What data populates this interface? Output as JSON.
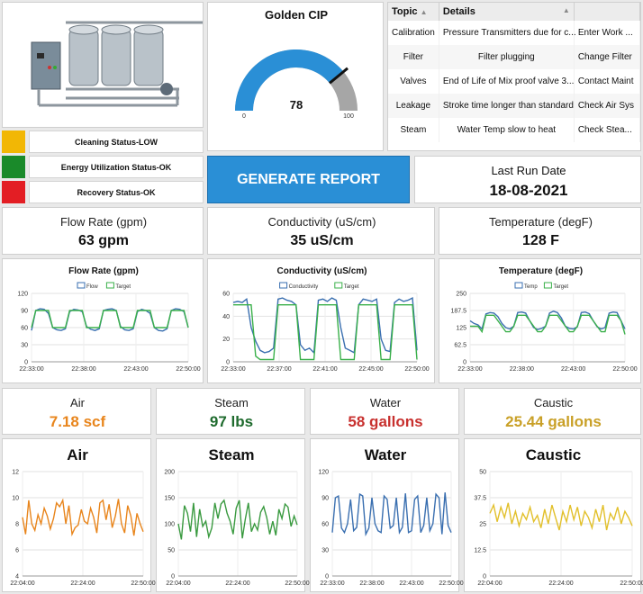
{
  "gauge": {
    "title": "Golden CIP",
    "value": 78,
    "min_label": "0",
    "max_label": "100",
    "fraction": 0.78
  },
  "issues": {
    "headers": [
      "Topic",
      "Details",
      ""
    ],
    "rows": [
      [
        "Calibration",
        "Pressure Transmitters due for c...",
        "Enter Work ..."
      ],
      [
        "Filter",
        "Filter plugging",
        "Change Filter"
      ],
      [
        "Valves",
        "End of Life of Mix proof valve 3...",
        "Contact Maint"
      ],
      [
        "Leakage",
        "Stroke time longer than standard",
        "Check Air Sys"
      ],
      [
        "Steam",
        "Water Temp slow to heat",
        "Check Stea..."
      ]
    ]
  },
  "status": [
    {
      "label": "Cleaning Status-LOW",
      "color": "#f2b705"
    },
    {
      "label": "Energy Utilization Status-OK",
      "color": "#1a8a2a"
    },
    {
      "label": "Recovery Status-OK",
      "color": "#e31e24"
    }
  ],
  "report_button": "GENERATE REPORT",
  "last_run": {
    "label": "Last Run Date",
    "value": "18-08-2021"
  },
  "kpis": [
    {
      "label": "Flow Rate (gpm)",
      "value": "63 gpm"
    },
    {
      "label": "Conductivity (uS/cm)",
      "value": "35 uS/cm"
    },
    {
      "label": "Temperature (degF)",
      "value": "128 F"
    }
  ],
  "totals": [
    {
      "label": "Air",
      "value": "7.18 scf",
      "color": "#e8851c"
    },
    {
      "label": "Steam",
      "value": "97 lbs",
      "color": "#1f6b2e"
    },
    {
      "label": "Water",
      "value": "58 gallons",
      "color": "#c8312f"
    },
    {
      "label": "Caustic",
      "value": "25.44 gallons",
      "color": "#c9a027"
    }
  ],
  "chart_data": [
    {
      "type": "line",
      "title": "Flow Rate (gpm)",
      "x_ticks": [
        "22:33:00",
        "22:38:00",
        "22:43:00",
        "22:50:00"
      ],
      "ylim": [
        0,
        120
      ],
      "y_ticks": [
        "0",
        "30",
        "60",
        "90",
        "120"
      ],
      "legend": "top-center",
      "series": [
        {
          "name": "Flow",
          "color": "#3a6fb0",
          "values": [
            55,
            90,
            93,
            92,
            85,
            60,
            56,
            55,
            58,
            88,
            92,
            91,
            88,
            62,
            57,
            55,
            58,
            90,
            92,
            93,
            90,
            62,
            56,
            55,
            58,
            88,
            92,
            90,
            85,
            60,
            55,
            54,
            58,
            90,
            93,
            92,
            88,
            60
          ]
        },
        {
          "name": "Target",
          "color": "#3ab04a",
          "values": [
            60,
            90,
            90,
            90,
            90,
            60,
            60,
            60,
            60,
            90,
            90,
            90,
            90,
            60,
            60,
            60,
            60,
            90,
            90,
            90,
            90,
            60,
            60,
            60,
            60,
            90,
            90,
            90,
            90,
            60,
            60,
            60,
            60,
            90,
            90,
            90,
            90,
            60
          ]
        }
      ]
    },
    {
      "type": "line",
      "title": "Conductivity (uS/cm)",
      "x_ticks": [
        "22:33:00",
        "22:37:00",
        "22:41:00",
        "22:45:00",
        "22:50:00"
      ],
      "ylim": [
        0,
        60
      ],
      "y_ticks": [
        "0",
        "20",
        "40",
        "60"
      ],
      "legend": "top-center",
      "series": [
        {
          "name": "Conductivity",
          "color": "#3a6fb0",
          "values": [
            52,
            53,
            52,
            55,
            30,
            18,
            10,
            8,
            9,
            12,
            55,
            56,
            54,
            53,
            50,
            15,
            10,
            12,
            8,
            54,
            55,
            53,
            56,
            54,
            30,
            12,
            10,
            8,
            50,
            55,
            54,
            53,
            55,
            20,
            10,
            9,
            52,
            55,
            53,
            54,
            56,
            10
          ]
        },
        {
          "name": "Target",
          "color": "#3ab04a",
          "values": [
            50,
            50,
            50,
            50,
            50,
            5,
            2,
            2,
            2,
            2,
            50,
            50,
            50,
            50,
            50,
            2,
            2,
            2,
            2,
            50,
            50,
            50,
            50,
            50,
            2,
            2,
            2,
            2,
            50,
            50,
            50,
            50,
            50,
            2,
            2,
            2,
            50,
            50,
            50,
            50,
            50,
            2
          ]
        }
      ]
    },
    {
      "type": "line",
      "title": "Temperature (degF)",
      "x_ticks": [
        "22:33:00",
        "22:38:00",
        "22:43:00",
        "22:50:00"
      ],
      "ylim": [
        0,
        250
      ],
      "y_ticks": [
        "0",
        "62.5",
        "125",
        "187.5",
        "250"
      ],
      "legend": "top-center",
      "series": [
        {
          "name": "Temp",
          "color": "#3a6fb0",
          "values": [
            150,
            140,
            135,
            120,
            175,
            180,
            178,
            165,
            140,
            125,
            120,
            130,
            180,
            182,
            178,
            150,
            125,
            118,
            122,
            130,
            178,
            185,
            180,
            160,
            130,
            122,
            120,
            128,
            180,
            182,
            176,
            150,
            128,
            120,
            125,
            178,
            182,
            180,
            150,
            120
          ]
        },
        {
          "name": "Target",
          "color": "#3ab04a",
          "values": [
            130,
            130,
            130,
            110,
            170,
            170,
            170,
            150,
            130,
            110,
            110,
            130,
            170,
            170,
            170,
            150,
            130,
            110,
            110,
            130,
            170,
            170,
            170,
            150,
            130,
            110,
            110,
            130,
            170,
            170,
            170,
            150,
            130,
            110,
            110,
            170,
            170,
            170,
            150,
            100
          ]
        }
      ]
    },
    {
      "type": "line",
      "title": "Air",
      "x_ticks": [
        "22:04:00",
        "22:24:00",
        "22:50:00"
      ],
      "ylim": [
        4,
        12
      ],
      "y_ticks": [
        "4",
        "6",
        "8",
        "10",
        "12"
      ],
      "series": [
        {
          "name": "",
          "color": "#e8851c",
          "values": [
            8.5,
            7.2,
            9.8,
            8,
            7.5,
            8.7,
            8,
            9.2,
            8.6,
            7.6,
            8.4,
            9.6,
            9.3,
            9.8,
            8,
            9.4,
            7.2,
            7.7,
            7.9,
            9.1,
            8.2,
            8,
            9.2,
            8.5,
            7.3,
            9.6,
            9.8,
            8.3,
            9.5,
            7.7,
            8.6,
            9.9,
            8,
            7.3,
            9.4,
            8.6,
            7.1,
            8.8,
            8,
            7.4
          ]
        }
      ]
    },
    {
      "type": "line",
      "title": "Steam",
      "x_ticks": [
        "22:04:00",
        "22:24:00",
        "22:50:00"
      ],
      "ylim": [
        0,
        200
      ],
      "y_ticks": [
        "0",
        "50",
        "100",
        "150",
        "200"
      ],
      "series": [
        {
          "name": "",
          "color": "#3a9a40",
          "values": [
            100,
            70,
            135,
            120,
            85,
            140,
            75,
            128,
            95,
            105,
            75,
            92,
            140,
            110,
            138,
            145,
            120,
            105,
            80,
            130,
            145,
            72,
            110,
            140,
            85,
            100,
            88,
            122,
            133,
            112,
            80,
            105,
            78,
            128,
            110,
            138,
            132,
            95,
            115,
            98
          ]
        }
      ]
    },
    {
      "type": "line",
      "title": "Water",
      "x_ticks": [
        "22:33:00",
        "22:38:00",
        "22:43:00",
        "22:50:00"
      ],
      "ylim": [
        0,
        120
      ],
      "y_ticks": [
        "0",
        "30",
        "60",
        "90",
        "120"
      ],
      "series": [
        {
          "name": "",
          "color": "#3a6fb0",
          "values": [
            50,
            90,
            92,
            55,
            50,
            60,
            88,
            52,
            56,
            94,
            92,
            48,
            55,
            90,
            60,
            52,
            50,
            92,
            88,
            55,
            58,
            90,
            50,
            56,
            95,
            50,
            52,
            88,
            92,
            50,
            58,
            90,
            52,
            60,
            94,
            90,
            48,
            96,
            58,
            50
          ]
        }
      ]
    },
    {
      "type": "line",
      "title": "Caustic",
      "x_ticks": [
        "22:04:00",
        "22:24:00",
        "22:50:00"
      ],
      "ylim": [
        0,
        50
      ],
      "y_ticks": [
        "0",
        "12.5",
        "25",
        "37.5",
        "50"
      ],
      "series": [
        {
          "name": "",
          "color": "#e2c02b",
          "values": [
            30,
            34,
            26,
            33,
            28,
            35,
            25,
            31,
            24,
            30,
            27,
            33,
            26,
            29,
            23,
            32,
            25,
            34,
            28,
            22,
            31,
            26,
            34,
            27,
            33,
            24,
            31,
            28,
            23,
            32,
            26,
            34,
            22,
            30,
            27,
            33,
            25,
            31,
            28,
            24
          ]
        }
      ]
    }
  ]
}
